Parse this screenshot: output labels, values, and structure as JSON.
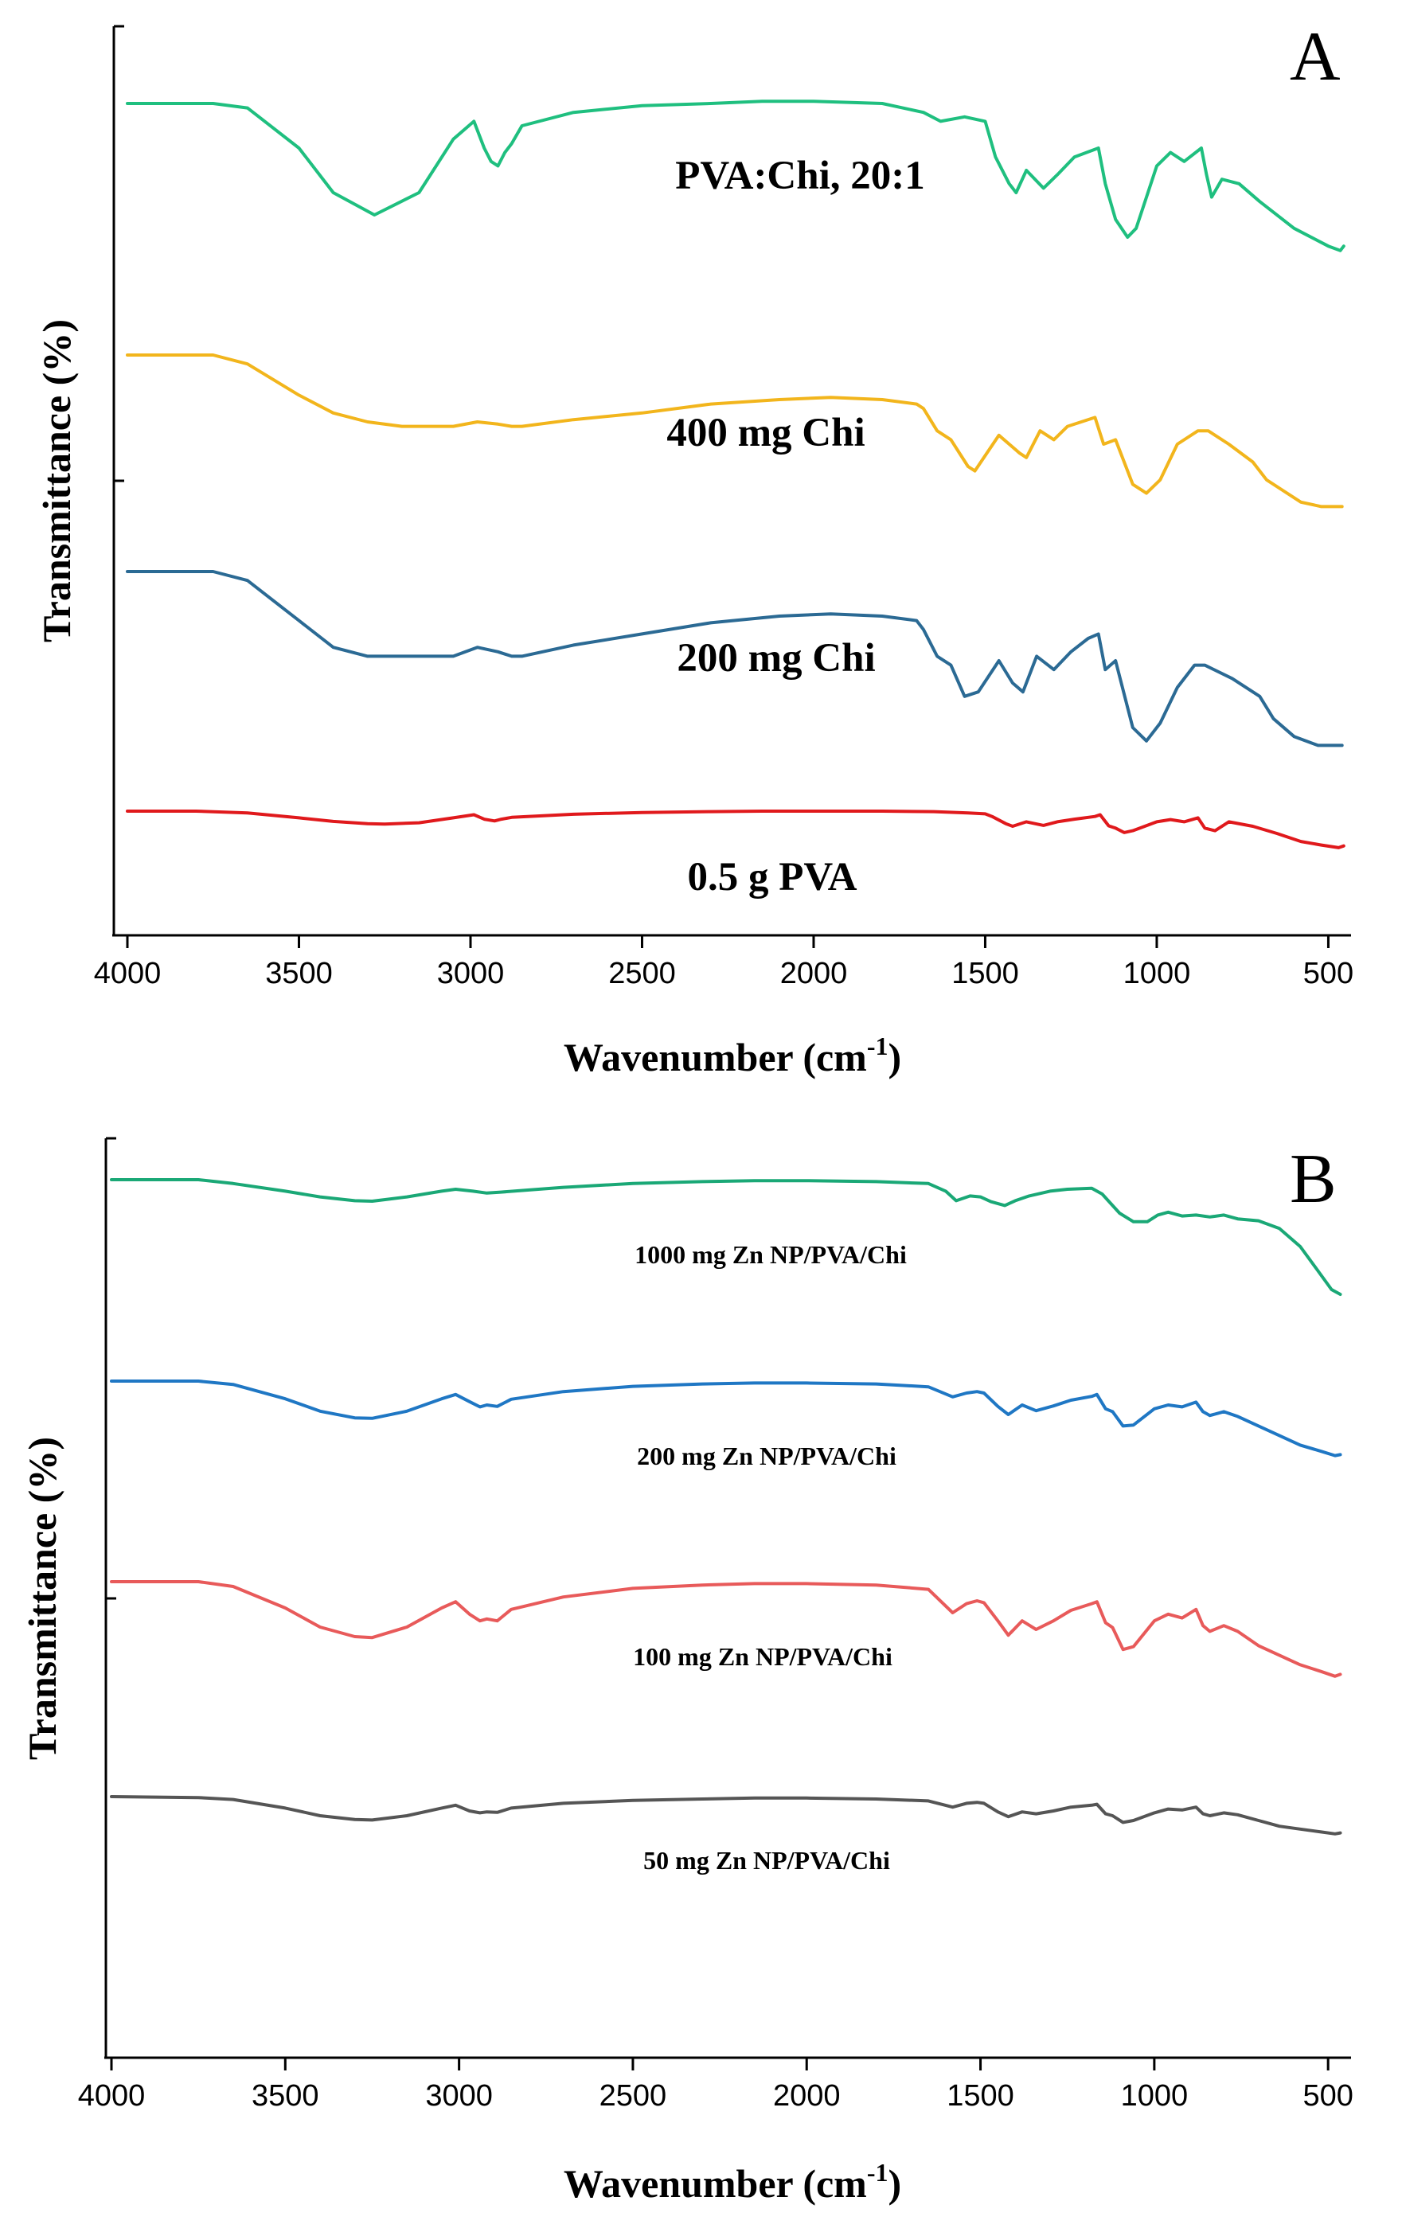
{
  "chart_data": [
    {
      "type": "line",
      "panel_label": "A",
      "xlabel": "Wavenumber (cm",
      "xlabel_sup": "-1",
      "xlabel_close": ")",
      "ylabel": "Transmittance (%)",
      "xlim": [
        4000,
        450
      ],
      "x_reversed": true,
      "xticks": [
        4000,
        3500,
        3000,
        2500,
        2000,
        1500,
        1000,
        500
      ],
      "y_units": "arbitrary (stacked, offset)",
      "series": [
        {
          "name": "PVA:Chi, 20:1",
          "color": "#1fbf7f",
          "x": [
            4000,
            3750,
            3650,
            3500,
            3400,
            3280,
            3150,
            3050,
            2990,
            2960,
            2940,
            2920,
            2900,
            2880,
            2850,
            2700,
            2500,
            2300,
            2150,
            2000,
            1800,
            1680,
            1630,
            1560,
            1500,
            1470,
            1430,
            1410,
            1380,
            1330,
            1290,
            1240,
            1170,
            1150,
            1120,
            1085,
            1060,
            1000,
            960,
            920,
            870,
            855,
            840,
            810,
            760,
            700,
            600,
            500,
            465,
            455
          ],
          "values": [
            100,
            100,
            99,
            90,
            80,
            75,
            80,
            92,
            96,
            90,
            87,
            86,
            89,
            91,
            95,
            98,
            99.5,
            100,
            100.5,
            100.5,
            100,
            98,
            96,
            97,
            96,
            88,
            82,
            80,
            85,
            81,
            84,
            88,
            90,
            82,
            74,
            70,
            72,
            86,
            89,
            87,
            90,
            84,
            79,
            83,
            82,
            78,
            72,
            68,
            67,
            68
          ]
        },
        {
          "name": "400 mg Chi",
          "color": "#f2b51c",
          "x": [
            4000,
            3750,
            3650,
            3500,
            3400,
            3300,
            3200,
            3050,
            2980,
            2920,
            2880,
            2850,
            2700,
            2500,
            2300,
            2100,
            1950,
            1800,
            1700,
            1680,
            1640,
            1600,
            1550,
            1530,
            1460,
            1400,
            1380,
            1340,
            1300,
            1260,
            1220,
            1180,
            1155,
            1120,
            1070,
            1030,
            990,
            940,
            880,
            850,
            790,
            720,
            680,
            640,
            580,
            520,
            460
          ],
          "values": [
            100,
            100,
            98,
            91,
            87,
            85,
            84,
            84,
            85,
            84.5,
            84,
            84,
            85.5,
            87,
            89,
            90,
            90.5,
            90,
            89,
            88,
            83,
            81,
            75,
            74,
            82,
            78,
            77,
            83,
            81,
            84,
            85,
            86,
            80,
            81,
            71,
            69,
            72,
            80,
            83,
            83,
            80,
            76,
            72,
            70,
            67,
            66,
            66
          ]
        },
        {
          "name": "200 mg Chi",
          "color": "#2b6a94",
          "x": [
            4000,
            3750,
            3650,
            3500,
            3400,
            3300,
            3200,
            3050,
            2980,
            2920,
            2880,
            2850,
            2700,
            2500,
            2300,
            2100,
            1950,
            1800,
            1700,
            1680,
            1640,
            1600,
            1560,
            1520,
            1460,
            1420,
            1390,
            1350,
            1300,
            1250,
            1200,
            1170,
            1150,
            1120,
            1070,
            1030,
            990,
            940,
            890,
            860,
            780,
            700,
            660,
            600,
            530,
            460
          ],
          "values": [
            100,
            100,
            98,
            89,
            83,
            81,
            81,
            81,
            83,
            82,
            81,
            81,
            83.5,
            86,
            88.5,
            90,
            90.5,
            90,
            89,
            87,
            81,
            79,
            72,
            73,
            80,
            75,
            73,
            81,
            78,
            82,
            85,
            86,
            78,
            80,
            65,
            62,
            66,
            74,
            79,
            79,
            76,
            72,
            67,
            63,
            61,
            61
          ]
        },
        {
          "name": "0.5 g PVA",
          "color": "#e0191c",
          "x": [
            4000,
            3800,
            3650,
            3500,
            3400,
            3300,
            3250,
            3150,
            3050,
            2990,
            2960,
            2930,
            2910,
            2880,
            2700,
            2500,
            2300,
            2150,
            2000,
            1800,
            1650,
            1550,
            1500,
            1480,
            1440,
            1420,
            1380,
            1330,
            1290,
            1240,
            1180,
            1165,
            1140,
            1120,
            1095,
            1070,
            1000,
            960,
            920,
            880,
            860,
            830,
            790,
            720,
            650,
            580,
            520,
            470,
            455
          ],
          "values": [
            100,
            100,
            99.6,
            98.5,
            97.7,
            97.2,
            97.1,
            97.4,
            98.5,
            99.2,
            98.2,
            97.8,
            98.2,
            98.6,
            99.3,
            99.7,
            99.9,
            100,
            100,
            100,
            99.9,
            99.6,
            99.4,
            98.8,
            97.2,
            96.6,
            97.6,
            96.8,
            97.6,
            98.2,
            98.8,
            99.2,
            96.7,
            96.2,
            95.2,
            95.6,
            97.6,
            98.1,
            97.6,
            98.5,
            96.2,
            95.6,
            97.6,
            96.6,
            95.0,
            93.2,
            92.4,
            91.8,
            92.2
          ]
        }
      ],
      "annotations": [
        "PVA:Chi, 20:1",
        "400 mg Chi",
        "200 mg Chi",
        "0.5 g PVA"
      ]
    },
    {
      "type": "line",
      "panel_label": "B",
      "xlabel": "Wavenumber (cm",
      "xlabel_sup": "-1",
      "xlabel_close": ")",
      "ylabel": "Transmittance (%)",
      "xlim": [
        4000,
        450
      ],
      "x_reversed": true,
      "xticks": [
        4000,
        3500,
        3000,
        2500,
        2000,
        1500,
        1000,
        500
      ],
      "y_units": "arbitrary (stacked, offset)",
      "series": [
        {
          "name": "1000 mg Zn NP/PVA/Chi",
          "color": "#1aa876",
          "x": [
            4000,
            3750,
            3650,
            3500,
            3400,
            3300,
            3250,
            3150,
            3050,
            3010,
            2960,
            2920,
            2880,
            2700,
            2500,
            2300,
            2150,
            2000,
            1800,
            1650,
            1600,
            1570,
            1530,
            1500,
            1470,
            1430,
            1400,
            1360,
            1300,
            1250,
            1180,
            1150,
            1100,
            1060,
            1020,
            990,
            960,
            920,
            880,
            840,
            800,
            760,
            700,
            640,
            580,
            530,
            490,
            465
          ],
          "values": [
            100,
            100,
            99.2,
            97.6,
            96.4,
            95.6,
            95.5,
            96.4,
            97.6,
            98,
            97.6,
            97.2,
            97.4,
            98.4,
            99.2,
            99.6,
            99.8,
            99.8,
            99.6,
            99.2,
            97.6,
            95.6,
            96.6,
            96.4,
            95.4,
            94.6,
            95.6,
            96.6,
            97.6,
            98,
            98.2,
            97,
            93,
            91.2,
            91.2,
            92.6,
            93.2,
            92.4,
            92.6,
            92.2,
            92.6,
            91.8,
            91.4,
            89.8,
            86,
            81,
            77,
            76
          ]
        },
        {
          "name": "200 mg Zn NP/PVA/Chi",
          "color": "#1f77c4",
          "x": [
            4000,
            3750,
            3650,
            3500,
            3400,
            3300,
            3250,
            3150,
            3050,
            3010,
            2970,
            2940,
            2920,
            2890,
            2850,
            2700,
            2500,
            2300,
            2150,
            2000,
            1800,
            1650,
            1580,
            1540,
            1510,
            1490,
            1450,
            1420,
            1380,
            1340,
            1290,
            1240,
            1180,
            1165,
            1140,
            1120,
            1090,
            1060,
            1000,
            960,
            920,
            880,
            860,
            840,
            800,
            760,
            700,
            640,
            580,
            520,
            480,
            465
          ],
          "values": [
            100,
            100,
            99.3,
            96.3,
            93.7,
            92.3,
            92.2,
            93.7,
            96.3,
            97.2,
            95.7,
            94.6,
            95,
            94.7,
            96.2,
            97.8,
            98.9,
            99.4,
            99.6,
            99.6,
            99.4,
            98.8,
            96.7,
            97.5,
            97.8,
            97.5,
            94.7,
            93,
            95,
            93.8,
            94.8,
            96,
            96.8,
            97.2,
            94.2,
            93.6,
            90.6,
            90.8,
            94.2,
            95,
            94.6,
            95.6,
            93.6,
            92.8,
            93.6,
            92.6,
            90.6,
            88.6,
            86.6,
            85.3,
            84.4,
            84.6
          ]
        },
        {
          "name": "100 mg Zn NP/PVA/Chi",
          "color": "#e85a5a",
          "x": [
            4000,
            3750,
            3650,
            3500,
            3400,
            3300,
            3250,
            3150,
            3050,
            3010,
            2970,
            2940,
            2920,
            2890,
            2850,
            2700,
            2500,
            2300,
            2150,
            2000,
            1800,
            1650,
            1580,
            1540,
            1510,
            1490,
            1450,
            1420,
            1380,
            1340,
            1290,
            1240,
            1180,
            1165,
            1140,
            1120,
            1090,
            1060,
            1000,
            960,
            920,
            880,
            860,
            840,
            800,
            760,
            700,
            640,
            580,
            520,
            480,
            465
          ],
          "values": [
            100,
            100,
            99,
            94.5,
            90.5,
            88.5,
            88.3,
            90.5,
            94.5,
            95.8,
            93.2,
            91.8,
            92.2,
            91.8,
            94.2,
            96.8,
            98.6,
            99.3,
            99.6,
            99.6,
            99.3,
            98.4,
            93.5,
            95.4,
            96,
            95.6,
            91.8,
            88.8,
            91.8,
            90,
            91.8,
            94,
            95.4,
            95.8,
            91.4,
            90.4,
            85.8,
            86.4,
            91.8,
            93.2,
            92.4,
            94.2,
            90.8,
            89.6,
            90.8,
            89.6,
            86.6,
            84.6,
            82.6,
            81.2,
            80.2,
            80.6
          ]
        },
        {
          "name": "50 mg Zn NP/PVA/Chi",
          "color": "#555555",
          "x": [
            4000,
            3750,
            3650,
            3500,
            3400,
            3300,
            3250,
            3150,
            3050,
            3010,
            2970,
            2940,
            2920,
            2890,
            2850,
            2700,
            2500,
            2300,
            2150,
            2000,
            1800,
            1650,
            1580,
            1540,
            1510,
            1490,
            1450,
            1420,
            1380,
            1340,
            1290,
            1240,
            1180,
            1165,
            1140,
            1120,
            1090,
            1060,
            1000,
            960,
            920,
            880,
            860,
            840,
            800,
            760,
            700,
            640,
            580,
            520,
            480,
            465
          ],
          "values": [
            100,
            99.8,
            99.4,
            97.6,
            96,
            95.2,
            95.1,
            96,
            97.6,
            98.2,
            97,
            96.6,
            96.8,
            96.7,
            97.6,
            98.6,
            99.2,
            99.5,
            99.7,
            99.7,
            99.5,
            99.1,
            97.8,
            98.6,
            98.8,
            98.6,
            96.8,
            95.8,
            96.8,
            96.4,
            97,
            97.8,
            98.2,
            98.4,
            96.4,
            96,
            94.6,
            95,
            96.6,
            97.4,
            97.2,
            97.8,
            96.4,
            96,
            96.6,
            96.2,
            95,
            93.8,
            93.2,
            92.6,
            92.2,
            92.4
          ]
        }
      ],
      "annotations": [
        "1000 mg Zn NP/PVA/Chi",
        "200 mg Zn NP/PVA/Chi",
        "100 mg Zn NP/PVA/Chi",
        "50 mg Zn NP/PVA/Chi"
      ]
    }
  ]
}
